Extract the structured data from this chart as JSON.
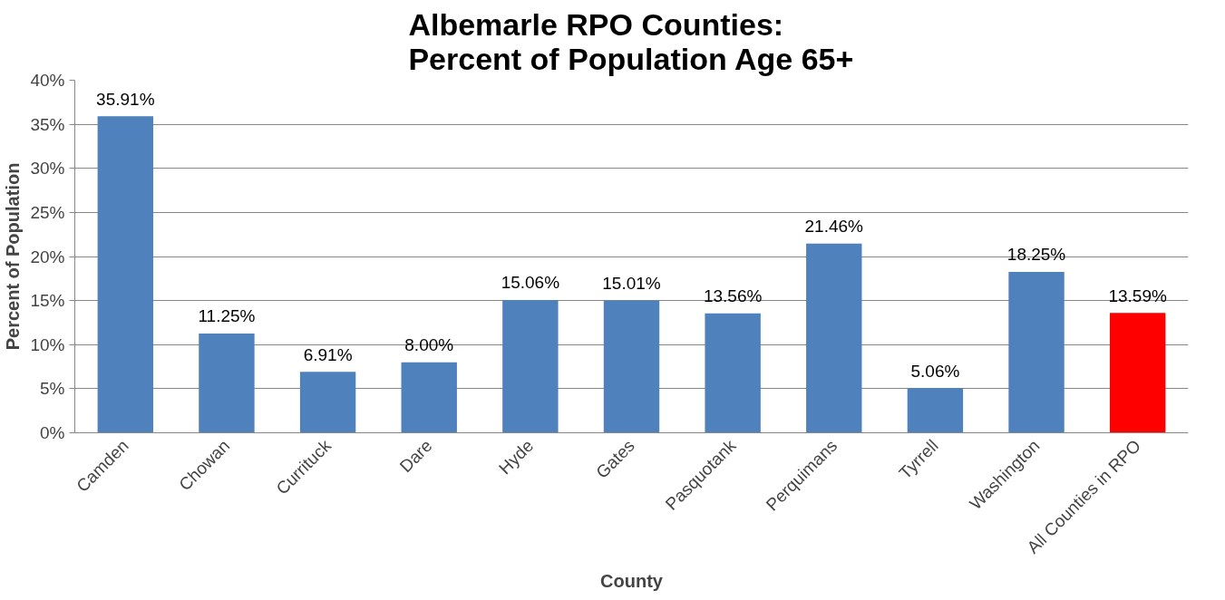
{
  "chart_data": {
    "type": "bar",
    "title": "Albemarle RPO Counties:\nPercent of Population Age 65+",
    "xlabel": "County",
    "ylabel": "Percent of Population",
    "categories": [
      "Camden",
      "Chowan",
      "Currituck",
      "Dare",
      "Hyde",
      "Gates",
      "Pasquotank",
      "Perquimans",
      "Tyrrell",
      "Washington",
      "All Counties in RPO"
    ],
    "values": [
      35.91,
      11.25,
      6.91,
      8.0,
      15.06,
      15.01,
      13.56,
      21.46,
      5.06,
      18.25,
      13.59
    ],
    "colors": [
      "#4f81bd",
      "#4f81bd",
      "#4f81bd",
      "#4f81bd",
      "#4f81bd",
      "#4f81bd",
      "#4f81bd",
      "#4f81bd",
      "#4f81bd",
      "#4f81bd",
      "#ff0000"
    ],
    "value_labels": [
      "35.91%",
      "11.25%",
      "6.91%",
      "8.00%",
      "15.06%",
      "15.01%",
      "13.56%",
      "21.46%",
      "5.06%",
      "18.25%",
      "13.59%"
    ],
    "ylim": [
      0,
      40
    ],
    "yticks": [
      {
        "value": 0,
        "label": "0%"
      },
      {
        "value": 5,
        "label": "5%"
      },
      {
        "value": 10,
        "label": "10%"
      },
      {
        "value": 15,
        "label": "15%"
      },
      {
        "value": 20,
        "label": "20%"
      },
      {
        "value": 25,
        "label": "25%"
      },
      {
        "value": 30,
        "label": "30%"
      },
      {
        "value": 35,
        "label": "35%"
      },
      {
        "value": 40,
        "label": "40%"
      }
    ],
    "grid": "y"
  }
}
